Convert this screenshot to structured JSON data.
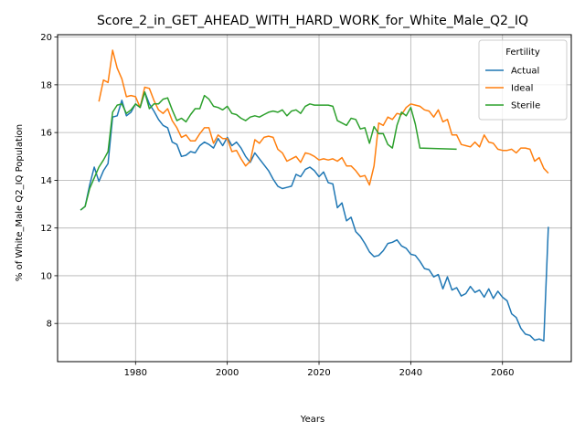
{
  "chart_data": {
    "type": "line",
    "title": "Score_2_in_GET_AHEAD_WITH_HARD_WORK_for_White_Male_Q2_IQ",
    "xlabel": "Years",
    "ylabel": "% of White_Male Q2_IQ Population",
    "xlim": [
      1963,
      2075
    ],
    "ylim": [
      6.4,
      20.1
    ],
    "xticks": [
      1980,
      2000,
      2020,
      2040,
      2060
    ],
    "yticks": [
      8,
      10,
      12,
      14,
      16,
      18,
      20
    ],
    "grid": true,
    "legend": {
      "title": "Fertility",
      "placement": "top-right"
    },
    "series": [
      {
        "name": "Actual",
        "color": "#1f77b4",
        "x": [
          1968,
          1969,
          1970,
          1971,
          1972,
          1973,
          1974,
          1975,
          1976,
          1977,
          1978,
          1979,
          1980,
          1981,
          1982,
          1983,
          1984,
          1985,
          1986,
          1987,
          1988,
          1989,
          1990,
          1991,
          1992,
          1993,
          1994,
          1995,
          1996,
          1997,
          1998,
          1999,
          2000,
          2001,
          2002,
          2003,
          2004,
          2005,
          2006,
          2007,
          2008,
          2009,
          2010,
          2011,
          2012,
          2013,
          2014,
          2015,
          2016,
          2017,
          2018,
          2019,
          2020,
          2021,
          2022,
          2023,
          2024,
          2025,
          2026,
          2027,
          2028,
          2029,
          2030,
          2031,
          2032,
          2033,
          2034,
          2035,
          2036,
          2037,
          2038,
          2039,
          2040,
          2041,
          2042,
          2043,
          2044,
          2045,
          2046,
          2047,
          2048,
          2049,
          2050,
          2051,
          2052,
          2053,
          2054,
          2055,
          2056,
          2057,
          2058,
          2059,
          2060,
          2061,
          2062,
          2063,
          2064,
          2065,
          2066,
          2067,
          2068,
          2069,
          2070
        ],
        "values": [
          12.75,
          12.9,
          13.8,
          14.55,
          13.95,
          14.4,
          14.7,
          16.65,
          16.7,
          17.35,
          16.7,
          16.85,
          17.2,
          17.05,
          17.7,
          17.2,
          16.9,
          16.55,
          16.3,
          16.2,
          15.6,
          15.5,
          15.0,
          15.05,
          15.2,
          15.15,
          15.45,
          15.6,
          15.5,
          15.35,
          15.75,
          15.45,
          15.8,
          15.45,
          15.6,
          15.35,
          15.0,
          14.75,
          15.15,
          14.9,
          14.65,
          14.4,
          14.05,
          13.75,
          13.65,
          13.7,
          13.75,
          14.25,
          14.15,
          14.45,
          14.55,
          14.4,
          14.15,
          14.35,
          13.9,
          13.85,
          12.85,
          13.05,
          12.3,
          12.45,
          11.85,
          11.65,
          11.35,
          11.0,
          10.8,
          10.85,
          11.05,
          11.35,
          11.4,
          11.5,
          11.25,
          11.15,
          10.9,
          10.85,
          10.6,
          10.3,
          10.25,
          9.95,
          10.05,
          9.45,
          9.95,
          9.4,
          9.5,
          9.15,
          9.25,
          9.55,
          9.3,
          9.4,
          9.1,
          9.45,
          9.05,
          9.35,
          9.1,
          8.95,
          8.4,
          8.25,
          7.8,
          7.55,
          7.5,
          7.3,
          7.35,
          7.27,
          12.05
        ]
      },
      {
        "name": "Ideal",
        "color": "#ff7f0e",
        "x": [
          1972,
          1973,
          1974,
          1975,
          1976,
          1977,
          1978,
          1979,
          1980,
          1981,
          1982,
          1983,
          1984,
          1985,
          1986,
          1987,
          1988,
          1989,
          1990,
          1991,
          1992,
          1993,
          1994,
          1995,
          1996,
          1997,
          1998,
          1999,
          2000,
          2001,
          2002,
          2003,
          2004,
          2005,
          2006,
          2007,
          2008,
          2009,
          2010,
          2011,
          2012,
          2013,
          2014,
          2015,
          2016,
          2017,
          2018,
          2019,
          2020,
          2021,
          2022,
          2023,
          2024,
          2025,
          2026,
          2027,
          2028,
          2029,
          2030,
          2031,
          2032,
          2033,
          2034,
          2035,
          2036,
          2037,
          2038,
          2039,
          2040,
          2041,
          2042,
          2043,
          2044,
          2045,
          2046,
          2047,
          2048,
          2049,
          2050,
          2051,
          2052,
          2053,
          2054,
          2055,
          2056,
          2057,
          2058,
          2059,
          2060,
          2061,
          2062,
          2063,
          2064,
          2065,
          2066,
          2067,
          2068,
          2069,
          2070
        ],
        "values": [
          17.3,
          18.2,
          18.1,
          19.45,
          18.7,
          18.25,
          17.5,
          17.55,
          17.5,
          17.05,
          17.9,
          17.85,
          17.35,
          16.95,
          16.8,
          17.0,
          16.5,
          16.2,
          15.8,
          15.9,
          15.65,
          15.65,
          15.95,
          16.2,
          16.2,
          15.55,
          15.9,
          15.75,
          15.75,
          15.2,
          15.25,
          14.9,
          14.6,
          14.8,
          15.7,
          15.55,
          15.8,
          15.85,
          15.8,
          15.3,
          15.15,
          14.8,
          14.9,
          15.0,
          14.75,
          15.15,
          15.1,
          15.0,
          14.85,
          14.9,
          14.85,
          14.9,
          14.8,
          14.95,
          14.6,
          14.6,
          14.4,
          14.15,
          14.2,
          13.8,
          14.6,
          16.4,
          16.3,
          16.65,
          16.55,
          16.8,
          16.75,
          17.05,
          17.2,
          17.15,
          17.1,
          16.95,
          16.9,
          16.65,
          16.95,
          16.45,
          16.55,
          15.9,
          15.9,
          15.5,
          15.45,
          15.4,
          15.6,
          15.4,
          15.9,
          15.6,
          15.55,
          15.3,
          15.25,
          15.25,
          15.3,
          15.15,
          15.35,
          15.35,
          15.3,
          14.8,
          14.95,
          14.5,
          14.3
        ]
      },
      {
        "name": "Sterile",
        "color": "#2ca02c",
        "x": [
          1968,
          1969,
          1970,
          1971,
          1972,
          1973,
          1974,
          1975,
          1976,
          1977,
          1978,
          1979,
          1980,
          1981,
          1982,
          1983,
          1984,
          1985,
          1986,
          1987,
          1988,
          1989,
          1990,
          1991,
          1992,
          1993,
          1994,
          1995,
          1996,
          1997,
          1998,
          1999,
          2000,
          2001,
          2002,
          2003,
          2004,
          2005,
          2006,
          2007,
          2008,
          2009,
          2010,
          2011,
          2012,
          2013,
          2014,
          2015,
          2016,
          2017,
          2018,
          2019,
          2020,
          2021,
          2022,
          2023,
          2024,
          2025,
          2026,
          2027,
          2028,
          2029,
          2030,
          2031,
          2032,
          2033,
          2034,
          2035,
          2036,
          2037,
          2038,
          2039,
          2040,
          2041,
          2042,
          2050
        ],
        "values": [
          12.75,
          12.9,
          13.65,
          14.1,
          14.55,
          14.85,
          15.2,
          16.85,
          17.15,
          17.2,
          16.8,
          16.95,
          17.2,
          17.05,
          17.7,
          17.0,
          17.2,
          17.2,
          17.4,
          17.45,
          16.95,
          16.5,
          16.6,
          16.45,
          16.75,
          17.0,
          17.0,
          17.55,
          17.4,
          17.1,
          17.05,
          16.95,
          17.1,
          16.8,
          16.75,
          16.6,
          16.5,
          16.65,
          16.7,
          16.65,
          16.75,
          16.85,
          16.9,
          16.85,
          16.95,
          16.7,
          16.9,
          16.95,
          16.8,
          17.1,
          17.2,
          17.15,
          17.15,
          17.15,
          17.15,
          17.1,
          16.5,
          16.4,
          16.3,
          16.6,
          16.55,
          16.15,
          16.2,
          15.55,
          16.25,
          15.95,
          15.95,
          15.5,
          15.35,
          16.3,
          16.85,
          16.7,
          17.05,
          16.35,
          15.35,
          15.3
        ]
      }
    ]
  }
}
